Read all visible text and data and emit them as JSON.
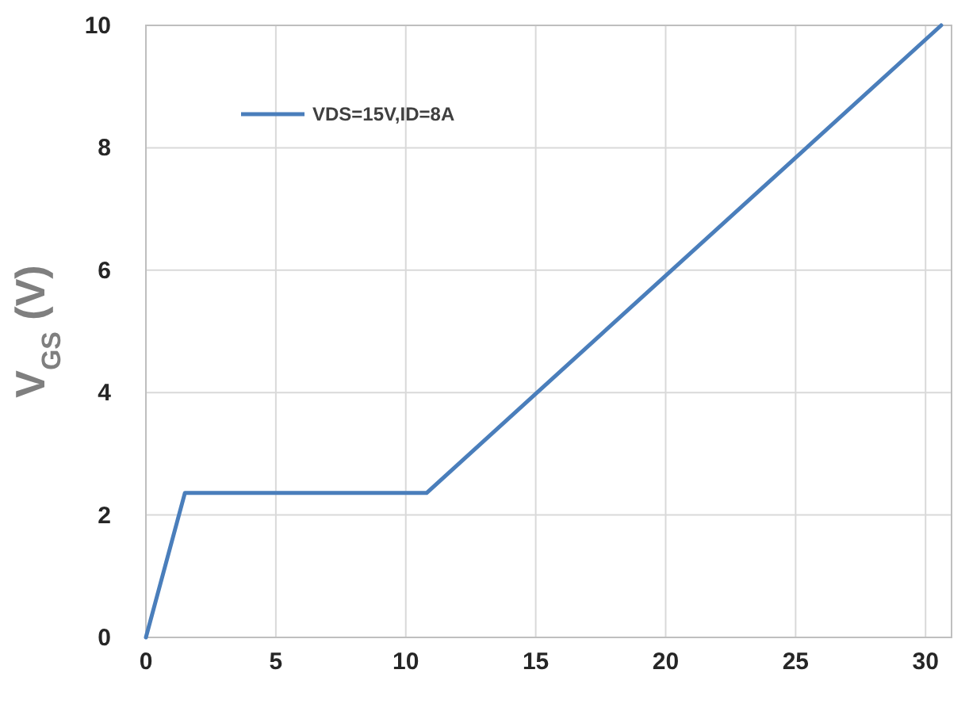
{
  "chart_data": {
    "type": "line",
    "ylabel": "V$_{GS}$ (V)",
    "x": [
      0,
      1.5,
      10.8,
      30.6
    ],
    "series": [
      {
        "name": "VDS=15V,ID=8A",
        "color": "#4a7ebb",
        "values": [
          0,
          2.36,
          2.36,
          10
        ]
      }
    ],
    "xlim": [
      0,
      31
    ],
    "xticks": [
      0,
      5,
      10,
      15,
      20,
      25,
      30
    ],
    "ylim": [
      0,
      10
    ],
    "yticks": [
      0,
      2,
      4,
      6,
      8,
      10
    ],
    "grid": true,
    "legend": "top left",
    "marker": "none",
    "line_style": "solid"
  }
}
